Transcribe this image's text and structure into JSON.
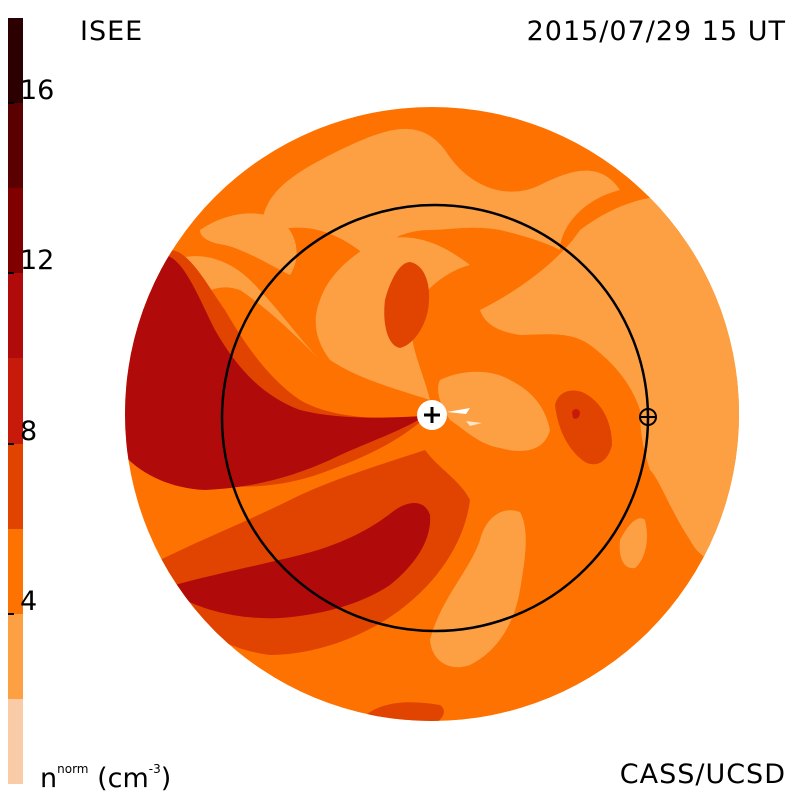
{
  "header": {
    "left": "ISEE",
    "right": "2015/07/29 15 UT"
  },
  "footer": {
    "right": "CASS/UCSD"
  },
  "colorbar": {
    "unit_main": "n",
    "unit_sup": "norm",
    "unit_paren": " (cm",
    "unit_exp": "-3",
    "unit_close": ")",
    "ticks": [
      {
        "value": 16,
        "label": "16"
      },
      {
        "value": 12,
        "label": "12"
      },
      {
        "value": 8,
        "label": "8"
      },
      {
        "value": 4,
        "label": "4"
      }
    ],
    "range": [
      0,
      18
    ],
    "levels": [
      {
        "from": 0,
        "to": 2,
        "color": "#f9cba6"
      },
      {
        "from": 2,
        "to": 4,
        "color": "#fca043"
      },
      {
        "from": 4,
        "to": 6,
        "color": "#fd7200"
      },
      {
        "from": 6,
        "to": 8,
        "color": "#e04400"
      },
      {
        "from": 8,
        "to": 10,
        "color": "#c81a0a"
      },
      {
        "from": 10,
        "to": 12,
        "color": "#b00a0a"
      },
      {
        "from": 12,
        "to": 14,
        "color": "#800000"
      },
      {
        "from": 14,
        "to": 16,
        "color": "#5a0000"
      },
      {
        "from": 16,
        "to": 18,
        "color": "#2c0000"
      }
    ]
  },
  "colors": {
    "l2": "#fca043",
    "l3": "#fd7200",
    "l4": "#e04400",
    "l5": "#b00a0a",
    "l6": "#c81a0a"
  },
  "markers": {
    "sun": "sun-plus-icon",
    "earth": "earth-cross-circle-icon"
  }
}
